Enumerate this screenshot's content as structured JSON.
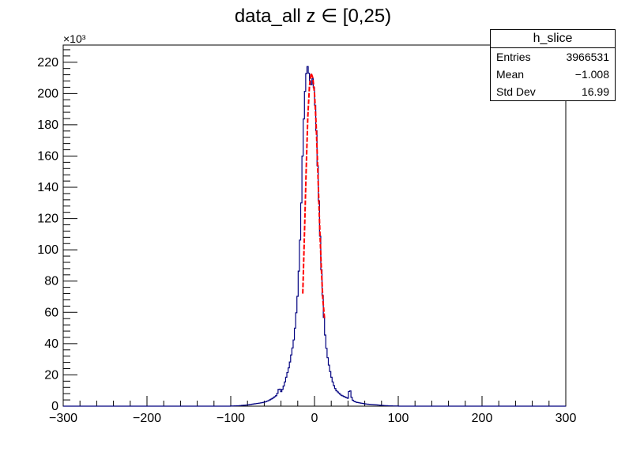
{
  "chart_data": {
    "type": "histogram",
    "title": "data_all z ∈ [0,25)",
    "y_multiplier": "×10³",
    "xlim": [
      -300,
      300
    ],
    "ylim": [
      0,
      231
    ],
    "x_ticks": [
      -300,
      -200,
      -100,
      0,
      100,
      200,
      300
    ],
    "x_tick_labels": [
      "−300",
      "−200",
      "−100",
      "0",
      "100",
      "200",
      "300"
    ],
    "y_ticks": [
      0,
      20,
      40,
      60,
      80,
      100,
      120,
      140,
      160,
      180,
      200,
      220
    ],
    "y_tick_labels": [
      "0",
      "20",
      "40",
      "60",
      "80",
      "100",
      "120",
      "140",
      "160",
      "180",
      "200",
      "220"
    ],
    "histogram": {
      "name": "h_slice",
      "color": "#00007f",
      "x": [
        -100,
        -90,
        -80,
        -75,
        -70,
        -65,
        -60,
        -55,
        -50,
        -45,
        -42,
        -40,
        -38,
        -36,
        -34,
        -32,
        -30,
        -28,
        -26,
        -24,
        -22,
        -20,
        -18,
        -16,
        -14,
        -12,
        -10,
        -8,
        -6,
        -4,
        -2,
        0,
        2,
        4,
        6,
        8,
        10,
        12,
        14,
        16,
        18,
        20,
        22,
        24,
        26,
        28,
        30,
        32,
        34,
        36,
        38,
        40,
        42,
        44,
        46,
        50,
        55,
        60,
        65,
        70,
        75,
        80,
        90,
        100
      ],
      "y": [
        0.1,
        0.3,
        0.8,
        1.2,
        1.6,
        2,
        2.5,
        3.5,
        5,
        7,
        12,
        9,
        11,
        14,
        18,
        22,
        26,
        32,
        38,
        45,
        58,
        72,
        95,
        125,
        165,
        195,
        212,
        218,
        210,
        205,
        210,
        200,
        180,
        150,
        120,
        90,
        68,
        50,
        38,
        30,
        24,
        19,
        15,
        12,
        10,
        9,
        8,
        7,
        6.5,
        6,
        5.5,
        5,
        12,
        6,
        3.5,
        2.5,
        2,
        1.5,
        1.2,
        1,
        0.8,
        0.5,
        0.2,
        0.1
      ]
    },
    "fit_curve": {
      "color": "#ff0000",
      "x": [
        -14,
        -12,
        -10,
        -8,
        -6,
        -4,
        -2,
        0,
        2,
        4,
        6,
        8,
        10,
        12
      ],
      "y": [
        72,
        110,
        150,
        185,
        205,
        213,
        210,
        200,
        180,
        150,
        118,
        90,
        68,
        56
      ]
    },
    "stats": {
      "title": "h_slice",
      "rows": [
        {
          "label": "Entries",
          "value": "3966531"
        },
        {
          "label": "Mean",
          "value": "−1.008"
        },
        {
          "label": "Std Dev",
          "value": "16.99"
        }
      ]
    }
  }
}
